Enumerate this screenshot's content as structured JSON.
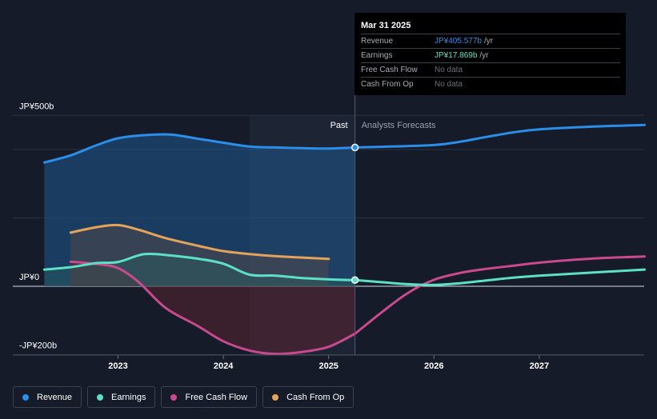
{
  "chart_data": {
    "type": "line",
    "y_axis_labels": [
      "JP¥500b",
      "JP¥0",
      "-JP¥200b"
    ],
    "x_ticks": [
      "2023",
      "2024",
      "2025",
      "2026",
      "2027"
    ],
    "ylim": [
      -200,
      500
    ],
    "divider_labels": {
      "past": "Past",
      "forecast": "Analysts Forecasts"
    },
    "series": [
      {
        "name": "Revenue",
        "color": "#2b8ee8",
        "values": [
          [
            2022.3,
            362
          ],
          [
            2022.55,
            383
          ],
          [
            2022.8,
            413
          ],
          [
            2023.0,
            433
          ],
          [
            2023.25,
            442
          ],
          [
            2023.5,
            444
          ],
          [
            2023.75,
            432
          ],
          [
            2024.0,
            420
          ],
          [
            2024.25,
            409
          ],
          [
            2024.5,
            406
          ],
          [
            2024.75,
            404
          ],
          [
            2025.0,
            403
          ],
          [
            2025.25,
            406
          ]
        ]
      },
      {
        "name": "Revenue forecast",
        "color": "#2b8ee8",
        "values": [
          [
            2025.25,
            406
          ],
          [
            2025.5,
            408
          ],
          [
            2026.0,
            413
          ],
          [
            2026.25,
            423
          ],
          [
            2026.5,
            437
          ],
          [
            2026.75,
            450
          ],
          [
            2027.0,
            459
          ],
          [
            2027.5,
            467
          ],
          [
            2028.0,
            472
          ]
        ]
      },
      {
        "name": "Earnings",
        "color": "#5ee0c6",
        "values": [
          [
            2022.3,
            49
          ],
          [
            2022.55,
            56
          ],
          [
            2022.8,
            68
          ],
          [
            2023.0,
            71
          ],
          [
            2023.25,
            94
          ],
          [
            2023.5,
            90
          ],
          [
            2023.75,
            81
          ],
          [
            2024.0,
            66
          ],
          [
            2024.25,
            34
          ],
          [
            2024.5,
            31
          ],
          [
            2024.75,
            24
          ],
          [
            2025.0,
            20
          ],
          [
            2025.25,
            18
          ]
        ]
      },
      {
        "name": "Earnings forecast",
        "color": "#5ee0c6",
        "values": [
          [
            2025.25,
            18
          ],
          [
            2025.5,
            12
          ],
          [
            2025.75,
            6
          ],
          [
            2026.0,
            4
          ],
          [
            2026.25,
            9
          ],
          [
            2026.5,
            17
          ],
          [
            2026.75,
            25
          ],
          [
            2027.0,
            31
          ],
          [
            2027.5,
            40
          ],
          [
            2028.0,
            49
          ]
        ]
      },
      {
        "name": "Free Cash Flow",
        "color": "#c94a8e",
        "values": [
          [
            2022.55,
            72
          ],
          [
            2022.8,
            65
          ],
          [
            2023.0,
            53
          ],
          [
            2023.2,
            11
          ],
          [
            2023.45,
            -63
          ],
          [
            2023.75,
            -115
          ],
          [
            2024.0,
            -161
          ],
          [
            2024.25,
            -188
          ],
          [
            2024.5,
            -198
          ],
          [
            2024.75,
            -192
          ],
          [
            2025.0,
            -177
          ],
          [
            2025.25,
            -139
          ]
        ]
      },
      {
        "name": "Free Cash Flow forecast",
        "color": "#c94a8e",
        "values": [
          [
            2025.25,
            -139
          ],
          [
            2025.5,
            -77
          ],
          [
            2025.75,
            -20
          ],
          [
            2026.0,
            19
          ],
          [
            2026.25,
            39
          ],
          [
            2026.5,
            51
          ],
          [
            2026.75,
            60
          ],
          [
            2027.0,
            69
          ],
          [
            2027.5,
            81
          ],
          [
            2028.0,
            87
          ]
        ]
      },
      {
        "name": "Cash From Op",
        "color": "#e3a35a",
        "values": [
          [
            2022.55,
            157
          ],
          [
            2022.8,
            173
          ],
          [
            2023.0,
            179
          ],
          [
            2023.2,
            165
          ],
          [
            2023.45,
            141
          ],
          [
            2023.75,
            119
          ],
          [
            2024.0,
            103
          ],
          [
            2024.25,
            94
          ],
          [
            2024.5,
            88
          ],
          [
            2024.75,
            84
          ],
          [
            2025.0,
            80
          ]
        ]
      }
    ]
  },
  "tooltip": {
    "date": "Mar 31 2025",
    "rows": [
      {
        "label": "Revenue",
        "value": "JP¥405.577b",
        "unit": "/yr",
        "color": "#2b8ee8"
      },
      {
        "label": "Earnings",
        "value": "JP¥17.869b",
        "unit": "/yr",
        "color": "#5ee0c6"
      },
      {
        "label": "Free Cash Flow",
        "value": "No data",
        "unit": "",
        "color": "#6b7079"
      },
      {
        "label": "Cash From Op",
        "value": "No data",
        "unit": "",
        "color": "#6b7079"
      }
    ]
  },
  "legend": [
    {
      "label": "Revenue",
      "color": "#2b8ee8"
    },
    {
      "label": "Earnings",
      "color": "#5ee0c6"
    },
    {
      "label": "Free Cash Flow",
      "color": "#c94a8e"
    },
    {
      "label": "Cash From Op",
      "color": "#e3a35a"
    }
  ]
}
